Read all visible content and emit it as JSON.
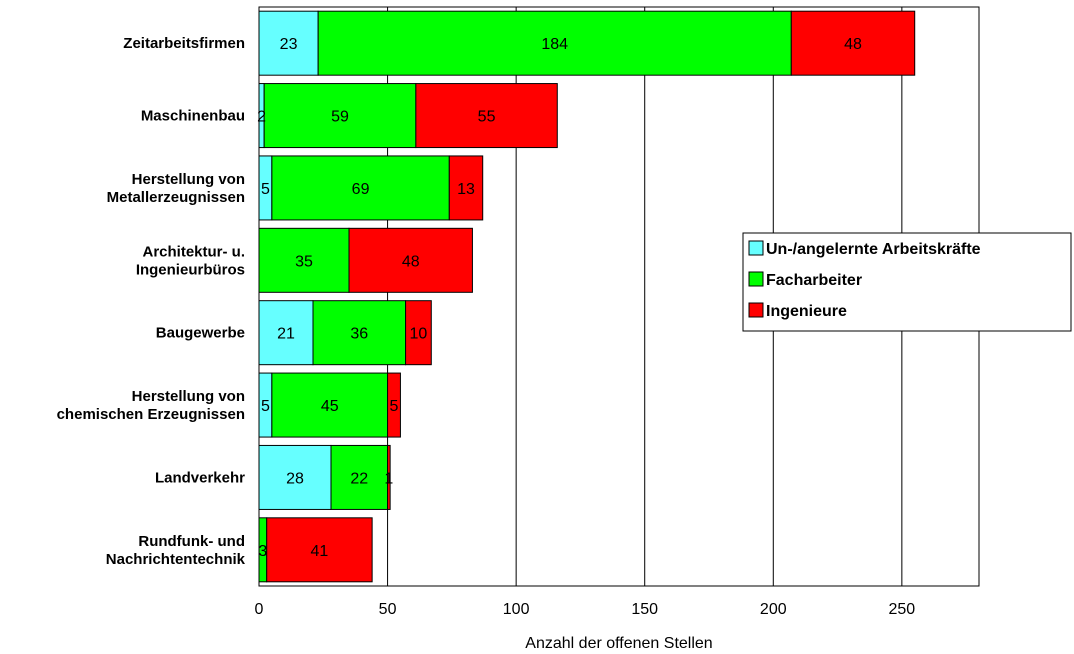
{
  "chart_data": {
    "type": "bar",
    "orientation": "horizontal",
    "stacked": true,
    "categories": [
      [
        "Zeitarbeitsfirmen"
      ],
      [
        "Maschinenbau"
      ],
      [
        "Herstellung von",
        "Metallerzeugnissen"
      ],
      [
        "Architektur- u.",
        "Ingenieurbüros"
      ],
      [
        "Baugewerbe"
      ],
      [
        "Herstellung von",
        "chemischen Erzeugnissen"
      ],
      [
        "Landverkehr"
      ],
      [
        "Rundfunk- und",
        "Nachrichtentechnik"
      ]
    ],
    "series": [
      {
        "name": "Un-/angelernte Arbeitskräfte",
        "color": "#66ffff",
        "values": [
          23,
          2,
          5,
          0,
          21,
          5,
          28,
          0
        ],
        "labels": [
          "23",
          "2",
          "5",
          "",
          "21",
          "5",
          "28",
          ""
        ]
      },
      {
        "name": "Facharbeiter",
        "color": "#00ff00",
        "values": [
          184,
          59,
          69,
          35,
          36,
          45,
          22,
          3
        ],
        "labels": [
          "184",
          "59",
          "69",
          "35",
          "36",
          "45",
          "22",
          "3"
        ]
      },
      {
        "name": "Ingenieure",
        "color": "#ff0000",
        "values": [
          48,
          55,
          13,
          48,
          10,
          5,
          1,
          41
        ],
        "labels": [
          "48",
          "55",
          "13",
          "48",
          "10",
          "5",
          "1",
          "41"
        ]
      }
    ],
    "xlabel": "Anzahl der offenen Stellen",
    "xlim": [
      0,
      280
    ],
    "xticks": [
      0,
      50,
      100,
      150,
      200,
      250
    ],
    "xtick_labels": [
      "0",
      "50",
      "100",
      "150",
      "200",
      "250"
    ],
    "grid": "vertical",
    "legend_position": "right"
  }
}
